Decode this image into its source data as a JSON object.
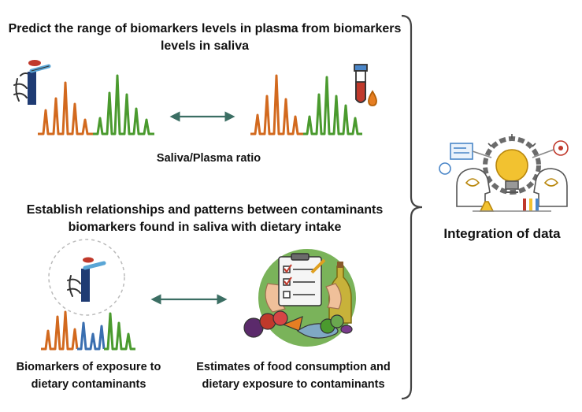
{
  "texts": {
    "title1": "Predict the range of biomarkers levels in plasma from biomarkers levels in saliva",
    "saliva_plasma_ratio": "Saliva/Plasma ratio",
    "title2": "Establish relationships and patterns between contaminants biomarkers found in saliva with dietary intake",
    "biomarkers_exposure": "Biomarkers of exposure to dietary contaminants",
    "food_estimates": "Estimates of food consumption and dietary exposure to contaminants",
    "integration": "Integration of data"
  },
  "colors": {
    "orange_peaks": "#d2691e",
    "green_peaks": "#4a9a2e",
    "blue_peaks": "#3a6fb0",
    "arrow": "#3b6e63",
    "brace": "#444444",
    "icon_outline": "#555555",
    "bulb_yellow": "#f2c230",
    "circle_green": "#6aa84f"
  },
  "icons": [
    "saliva-sampler-icon",
    "blood-tube-icon",
    "clipboard-checklist-icon",
    "food-basket-icon",
    "integration-gear-bulb-icon"
  ]
}
